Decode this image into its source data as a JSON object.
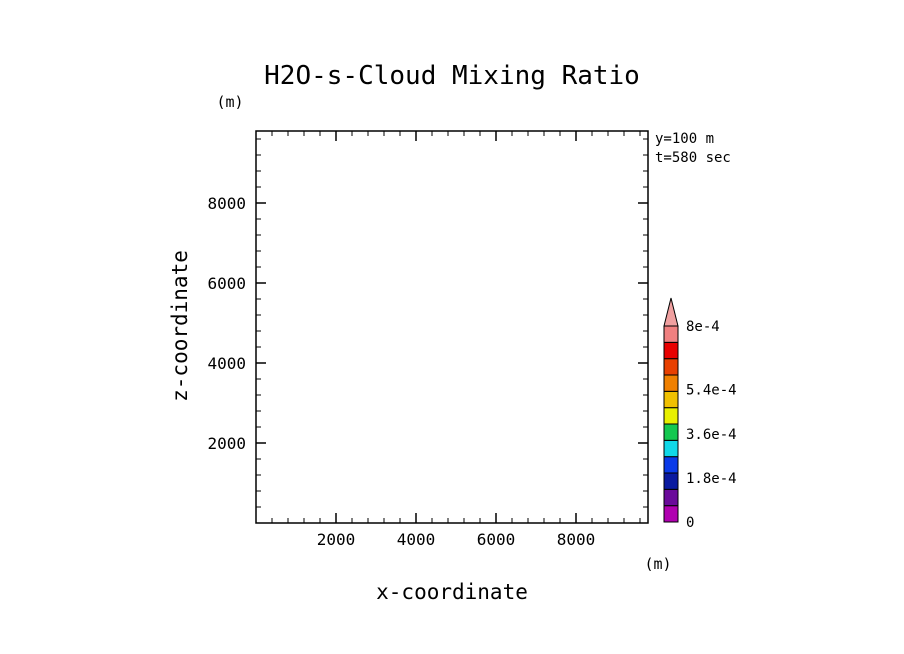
{
  "chart_data": {
    "type": "heatmap",
    "title": "H2O-s-Cloud Mixing Ratio",
    "xlabel": "x-coordinate",
    "ylabel": "z-coordinate",
    "x_unit": "(m)",
    "y_unit": "(m)",
    "xlim": [
      0,
      9800
    ],
    "ylim": [
      0,
      9800
    ],
    "x_ticks": [
      2000,
      4000,
      6000,
      8000
    ],
    "y_ticks": [
      2000,
      4000,
      6000,
      8000
    ],
    "x_tick_labels": [
      "2000",
      "4000",
      "6000",
      "8000"
    ],
    "y_tick_labels": [
      "2000",
      "4000",
      "6000",
      "8000"
    ],
    "minor_tick_step": 400,
    "annotations": [
      "y=100 m",
      "t=580 sec"
    ],
    "values": [],
    "colorbar": {
      "min": 0,
      "max": 0.0008,
      "step": 9e-05,
      "colors": [
        "#b000b0",
        "#6a0a9a",
        "#0a1aa0",
        "#0a3ae8",
        "#10d8e8",
        "#14c850",
        "#e8f000",
        "#f0c000",
        "#f08000",
        "#e84000",
        "#e80000",
        "#f08080"
      ],
      "extend_color": "#f0a0a0",
      "labels": [
        {
          "value": 0,
          "text": "0"
        },
        {
          "value": 0.00018,
          "text": "1.8e-4"
        },
        {
          "value": 0.00036,
          "text": "3.6e-4"
        },
        {
          "value": 0.00054,
          "text": "5.4e-4"
        },
        {
          "value": 0.0008,
          "text": "8e-4"
        }
      ]
    }
  }
}
